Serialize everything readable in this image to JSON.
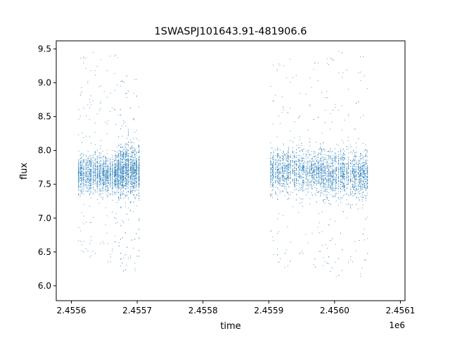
{
  "chart_data": {
    "type": "scatter",
    "title": "1SWASPJ101643.91-481906.6",
    "xlabel": "time",
    "ylabel": "flux",
    "x_offset_label": "1e6",
    "xlim": [
      2455577,
      2456107
    ],
    "ylim": [
      5.78,
      9.62
    ],
    "x_ticks": [
      2455600,
      2455700,
      2455800,
      2455900,
      2456000,
      2456100
    ],
    "x_tick_labels": [
      "2.4556",
      "2.4557",
      "2.4558",
      "2.4559",
      "2.4560",
      "2.4561"
    ],
    "y_ticks": [
      6.0,
      6.5,
      7.0,
      7.5,
      8.0,
      8.5,
      9.0,
      9.5
    ],
    "y_tick_labels": [
      "6.0",
      "6.5",
      "7.0",
      "7.5",
      "8.0",
      "8.5",
      "9.0",
      "9.5"
    ],
    "grid": false,
    "marker_color": "#1f77b4",
    "series": [
      {
        "name": "",
        "approx_count": 7000,
        "segments": [
          {
            "x_range": [
              2455611,
              2455672
            ],
            "center": 7.65,
            "spread_core": [
              7.2,
              8.2
            ],
            "spread_outliers": [
              6.35,
              9.5
            ]
          },
          {
            "x_range": [
              2455672,
              2455703
            ],
            "center": 7.7,
            "spread_core": [
              7.05,
              8.4
            ],
            "spread_outliers": [
              6.15,
              9.15
            ]
          },
          {
            "x_range": [
              2455903,
              2455983
            ],
            "center": 7.7,
            "spread_core": [
              7.1,
              8.3
            ],
            "spread_outliers": [
              6.2,
              9.4
            ]
          },
          {
            "x_range": [
              2455983,
              2456052
            ],
            "center": 7.65,
            "spread_core": [
              7.05,
              8.35
            ],
            "spread_outliers": [
              6.05,
              9.5
            ]
          }
        ]
      }
    ]
  }
}
